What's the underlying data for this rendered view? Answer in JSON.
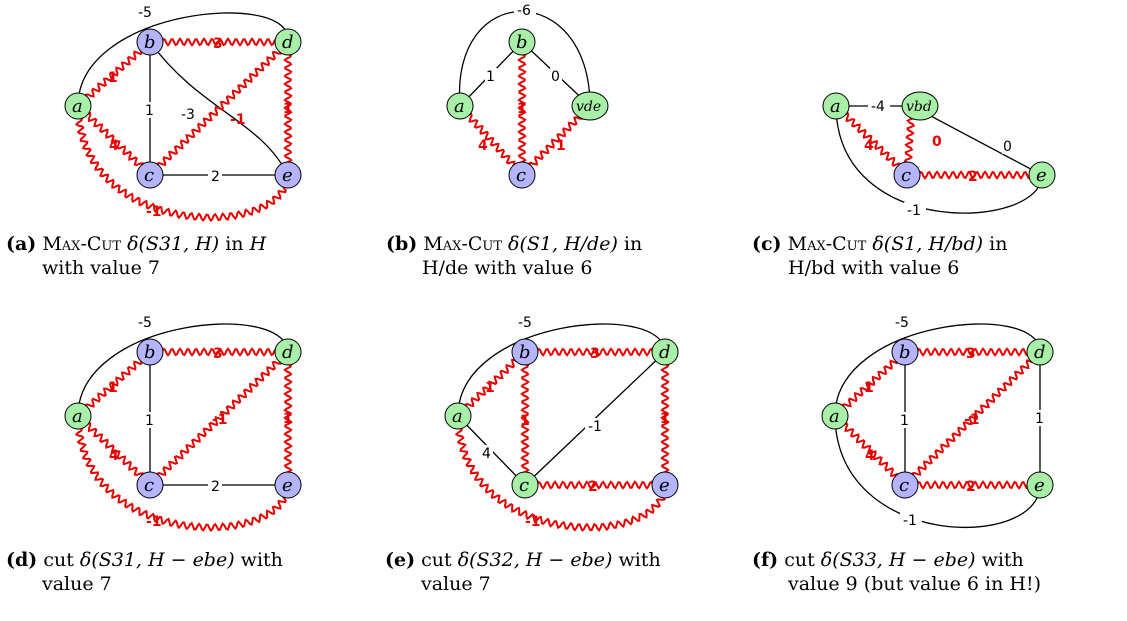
{
  "panels": [
    {
      "id": "a",
      "nodes": [
        {
          "key": "a",
          "label": "a",
          "color": "green"
        },
        {
          "key": "b",
          "label": "b",
          "color": "blue"
        },
        {
          "key": "c",
          "label": "c",
          "color": "blue"
        },
        {
          "key": "d",
          "label": "d",
          "color": "green"
        },
        {
          "key": "e",
          "label": "e",
          "color": "blue"
        }
      ],
      "edges": [
        {
          "from": "a",
          "to": "d",
          "weight": "-5",
          "cut": false
        },
        {
          "from": "a",
          "to": "b",
          "weight": "1",
          "cut": true
        },
        {
          "from": "b",
          "to": "d",
          "weight": "3",
          "cut": true
        },
        {
          "from": "b",
          "to": "c",
          "weight": "1",
          "cut": false
        },
        {
          "from": "b",
          "to": "e",
          "weight": "-3",
          "cut": false
        },
        {
          "from": "a",
          "to": "c",
          "weight": "4",
          "cut": true
        },
        {
          "from": "c",
          "to": "d",
          "weight": "-1",
          "cut": true
        },
        {
          "from": "d",
          "to": "e",
          "weight": "1",
          "cut": true
        },
        {
          "from": "c",
          "to": "e",
          "weight": "2",
          "cut": false
        },
        {
          "from": "a",
          "to": "e",
          "weight": "-1",
          "cut": true
        }
      ],
      "caption": {
        "tag": "(a)",
        "line1_pre": "Max-Cut",
        "line1_math": "δ(S31, H)",
        "line1_mid": " in ",
        "line1_end": "H",
        "line2": "with value 7"
      }
    },
    {
      "id": "b",
      "nodes": [
        {
          "key": "a",
          "label": "a",
          "color": "green"
        },
        {
          "key": "b",
          "label": "b",
          "color": "green"
        },
        {
          "key": "c",
          "label": "c",
          "color": "blue"
        },
        {
          "key": "v",
          "label": "vde",
          "color": "green"
        }
      ],
      "edges": [
        {
          "from": "a",
          "to": "v",
          "weight": "-6",
          "cut": false
        },
        {
          "from": "a",
          "to": "b",
          "weight": "1",
          "cut": false
        },
        {
          "from": "b",
          "to": "v",
          "weight": "0",
          "cut": false
        },
        {
          "from": "b",
          "to": "c",
          "weight": "1",
          "cut": true
        },
        {
          "from": "a",
          "to": "c",
          "weight": "4",
          "cut": true
        },
        {
          "from": "c",
          "to": "v",
          "weight": "1",
          "cut": true
        }
      ],
      "caption": {
        "tag": "(b)",
        "line1_pre": "Max-Cut",
        "line1_math": "δ(S1, H/de)",
        "line1_end": " in",
        "line2": "H/de with value 6"
      }
    },
    {
      "id": "c",
      "nodes": [
        {
          "key": "a",
          "label": "a",
          "color": "green"
        },
        {
          "key": "v",
          "label": "vbd",
          "color": "green"
        },
        {
          "key": "c",
          "label": "c",
          "color": "blue"
        },
        {
          "key": "e",
          "label": "e",
          "color": "green"
        }
      ],
      "edges": [
        {
          "from": "a",
          "to": "v",
          "weight": "-4",
          "cut": false
        },
        {
          "from": "a",
          "to": "c",
          "weight": "4",
          "cut": true
        },
        {
          "from": "c",
          "to": "v",
          "weight": "0",
          "cut": true
        },
        {
          "from": "v",
          "to": "e",
          "weight": "0",
          "cut": false
        },
        {
          "from": "c",
          "to": "e",
          "weight": "2",
          "cut": true
        },
        {
          "from": "a",
          "to": "e",
          "weight": "-1",
          "cut": false
        }
      ],
      "caption": {
        "tag": "(c)",
        "line1_pre": "Max-Cut",
        "line1_math": "δ(S1, H/bd)",
        "line1_end": " in",
        "line2": "H/bd with value 6"
      }
    },
    {
      "id": "d",
      "nodes": [
        {
          "key": "a",
          "label": "a",
          "color": "green"
        },
        {
          "key": "b",
          "label": "b",
          "color": "blue"
        },
        {
          "key": "c",
          "label": "c",
          "color": "blue"
        },
        {
          "key": "d",
          "label": "d",
          "color": "green"
        },
        {
          "key": "e",
          "label": "e",
          "color": "blue"
        }
      ],
      "edges": [
        {
          "from": "a",
          "to": "d",
          "weight": "-5",
          "cut": false
        },
        {
          "from": "a",
          "to": "b",
          "weight": "1",
          "cut": true
        },
        {
          "from": "b",
          "to": "d",
          "weight": "3",
          "cut": true
        },
        {
          "from": "b",
          "to": "c",
          "weight": "1",
          "cut": false
        },
        {
          "from": "a",
          "to": "c",
          "weight": "4",
          "cut": true
        },
        {
          "from": "c",
          "to": "d",
          "weight": "-1",
          "cut": true
        },
        {
          "from": "d",
          "to": "e",
          "weight": "1",
          "cut": true
        },
        {
          "from": "c",
          "to": "e",
          "weight": "2",
          "cut": false
        },
        {
          "from": "a",
          "to": "e",
          "weight": "-1",
          "cut": true
        }
      ],
      "caption": {
        "tag": "(d)",
        "line1_pre": "cut",
        "line1_math": "δ(S31, H − ebe)",
        "line1_end": " with",
        "line2": "value 7"
      }
    },
    {
      "id": "e",
      "nodes": [
        {
          "key": "a",
          "label": "a",
          "color": "green"
        },
        {
          "key": "b",
          "label": "b",
          "color": "blue"
        },
        {
          "key": "c",
          "label": "c",
          "color": "green"
        },
        {
          "key": "d",
          "label": "d",
          "color": "green"
        },
        {
          "key": "e",
          "label": "e",
          "color": "blue"
        }
      ],
      "edges": [
        {
          "from": "a",
          "to": "d",
          "weight": "-5",
          "cut": false
        },
        {
          "from": "a",
          "to": "b",
          "weight": "1",
          "cut": true
        },
        {
          "from": "b",
          "to": "d",
          "weight": "3",
          "cut": true
        },
        {
          "from": "b",
          "to": "c",
          "weight": "1",
          "cut": true
        },
        {
          "from": "a",
          "to": "c",
          "weight": "4",
          "cut": false
        },
        {
          "from": "c",
          "to": "d",
          "weight": "-1",
          "cut": false
        },
        {
          "from": "d",
          "to": "e",
          "weight": "1",
          "cut": true
        },
        {
          "from": "c",
          "to": "e",
          "weight": "2",
          "cut": true
        },
        {
          "from": "a",
          "to": "e",
          "weight": "-1",
          "cut": true
        }
      ],
      "caption": {
        "tag": "(e)",
        "line1_pre": "cut",
        "line1_math": "δ(S32, H − ebe)",
        "line1_end": " with",
        "line2": "value 7"
      }
    },
    {
      "id": "f",
      "nodes": [
        {
          "key": "a",
          "label": "a",
          "color": "green"
        },
        {
          "key": "b",
          "label": "b",
          "color": "blue"
        },
        {
          "key": "c",
          "label": "c",
          "color": "blue"
        },
        {
          "key": "d",
          "label": "d",
          "color": "green"
        },
        {
          "key": "e",
          "label": "e",
          "color": "green"
        }
      ],
      "edges": [
        {
          "from": "a",
          "to": "d",
          "weight": "-5",
          "cut": false
        },
        {
          "from": "a",
          "to": "b",
          "weight": "1",
          "cut": true
        },
        {
          "from": "b",
          "to": "d",
          "weight": "3",
          "cut": true
        },
        {
          "from": "b",
          "to": "c",
          "weight": "1",
          "cut": false
        },
        {
          "from": "a",
          "to": "c",
          "weight": "4",
          "cut": true
        },
        {
          "from": "c",
          "to": "d",
          "weight": "-1",
          "cut": true
        },
        {
          "from": "d",
          "to": "e",
          "weight": "1",
          "cut": false
        },
        {
          "from": "c",
          "to": "e",
          "weight": "2",
          "cut": true
        },
        {
          "from": "a",
          "to": "e",
          "weight": "-1",
          "cut": false
        }
      ],
      "caption": {
        "tag": "(f)",
        "line1_pre": "cut",
        "line1_math": "δ(S33, H − ebe)",
        "line1_end": " with",
        "line2": "value 9 (but value 6 in H!)"
      }
    }
  ],
  "colors": {
    "cut_edge": "#e60000",
    "node_blue": "#b4b4ff",
    "node_green": "#a8f0a8"
  }
}
